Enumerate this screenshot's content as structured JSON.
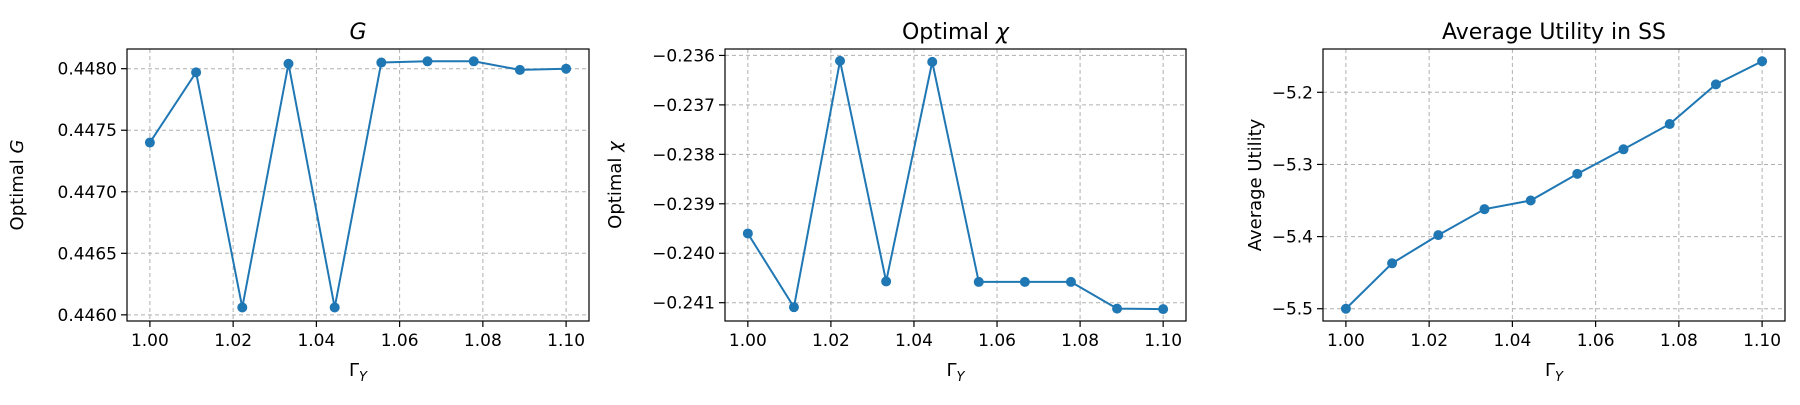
{
  "chart_data": [
    {
      "type": "line",
      "title_main": "G",
      "title_italic": true,
      "xlabel_main": "Γ",
      "xlabel_sub": "Y",
      "ylabel_main": "Optimal ",
      "ylabel_italic": "G",
      "x": [
        1.0,
        1.0111,
        1.0222,
        1.0333,
        1.0444,
        1.0556,
        1.0667,
        1.0778,
        1.0889,
        1.1
      ],
      "series": [
        {
          "values": [
            0.4474,
            0.44797,
            0.44606,
            0.44804,
            0.44606,
            0.44805,
            0.44806,
            0.44806,
            0.44799,
            0.448
          ],
          "color": "#1f77b4"
        }
      ],
      "xlim": [
        0.9945,
        1.1055
      ],
      "ylim": [
        0.44595,
        0.44816
      ],
      "xticks": [
        1.0,
        1.02,
        1.04,
        1.06,
        1.08,
        1.1
      ],
      "xtick_labels": [
        "1.00",
        "1.02",
        "1.04",
        "1.06",
        "1.08",
        "1.10"
      ],
      "yticks": [
        0.446,
        0.4465,
        0.447,
        0.4475,
        0.448
      ],
      "ytick_labels": [
        "0.4460",
        "0.4465",
        "0.4470",
        "0.4475",
        "0.4480"
      ],
      "grid": true
    },
    {
      "type": "line",
      "title_main": "Optimal ",
      "title_italic_part": "χ",
      "xlabel_main": "Γ",
      "xlabel_sub": "Y",
      "ylabel_main": "Optimal ",
      "ylabel_italic": "χ",
      "x": [
        1.0,
        1.0111,
        1.0222,
        1.0333,
        1.0444,
        1.0556,
        1.0667,
        1.0778,
        1.0889,
        1.1
      ],
      "series": [
        {
          "values": [
            -0.2396,
            -0.24109,
            -0.23611,
            -0.24057,
            -0.23613,
            -0.24058,
            -0.24058,
            -0.24058,
            -0.24112,
            -0.24113
          ],
          "color": "#1f77b4"
        }
      ],
      "xlim": [
        0.9945,
        1.1055
      ],
      "ylim": [
        -0.24137,
        -0.23587
      ],
      "xticks": [
        1.0,
        1.02,
        1.04,
        1.06,
        1.08,
        1.1
      ],
      "xtick_labels": [
        "1.00",
        "1.02",
        "1.04",
        "1.06",
        "1.08",
        "1.10"
      ],
      "yticks": [
        -0.241,
        -0.24,
        -0.239,
        -0.238,
        -0.237,
        -0.236
      ],
      "ytick_labels": [
        "−0.241",
        "−0.240",
        "−0.239",
        "−0.238",
        "−0.237",
        "−0.236"
      ],
      "grid": true
    },
    {
      "type": "line",
      "title_main": "Average Utility in SS",
      "xlabel_main": "Γ",
      "xlabel_sub": "Y",
      "ylabel_main": "Average Utility",
      "x": [
        1.0,
        1.0111,
        1.0222,
        1.0333,
        1.0444,
        1.0556,
        1.0667,
        1.0778,
        1.0889,
        1.1
      ],
      "series": [
        {
          "values": [
            -5.5,
            -5.437,
            -5.398,
            -5.362,
            -5.35,
            -5.313,
            -5.279,
            -5.244,
            -5.189,
            -5.157
          ],
          "color": "#1f77b4"
        }
      ],
      "xlim": [
        0.9945,
        1.1055
      ],
      "ylim": [
        -5.517,
        -5.14
      ],
      "xticks": [
        1.0,
        1.02,
        1.04,
        1.06,
        1.08,
        1.1
      ],
      "xtick_labels": [
        "1.00",
        "1.02",
        "1.04",
        "1.06",
        "1.08",
        "1.10"
      ],
      "yticks": [
        -5.5,
        -5.4,
        -5.3,
        -5.2
      ],
      "ytick_labels": [
        "−5.5",
        "−5.4",
        "−5.3",
        "−5.2"
      ],
      "grid": true
    }
  ]
}
